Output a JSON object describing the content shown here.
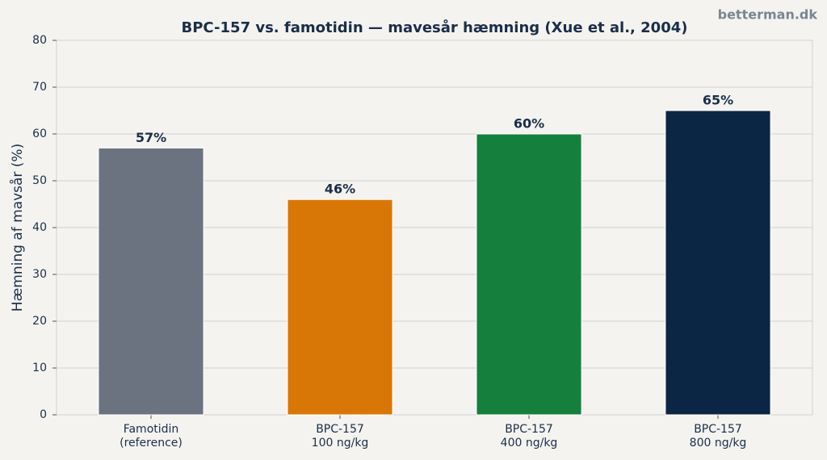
{
  "chart_data": {
    "type": "bar",
    "title": "BPC-157 vs. famotidin — mavesår hæmning (Xue et al., 2004)",
    "watermark": "betterman.dk",
    "ylabel": "Hæmning af mavsår (%)",
    "categories": [
      "Famotidin\n(reference)",
      "BPC-157\n100 ng/kg",
      "BPC-157\n400 ng/kg",
      "BPC-157\n800 ng/kg"
    ],
    "values": [
      57,
      46,
      60,
      65
    ],
    "value_labels": [
      "57%",
      "46%",
      "60%",
      "65%"
    ],
    "colors": [
      "#6b7280",
      "#d97706",
      "#15803d",
      "#0b2545"
    ],
    "ylim": [
      0,
      80
    ],
    "yticks": [
      0,
      10,
      20,
      30,
      40,
      50,
      60,
      70,
      80
    ],
    "grid": true
  }
}
